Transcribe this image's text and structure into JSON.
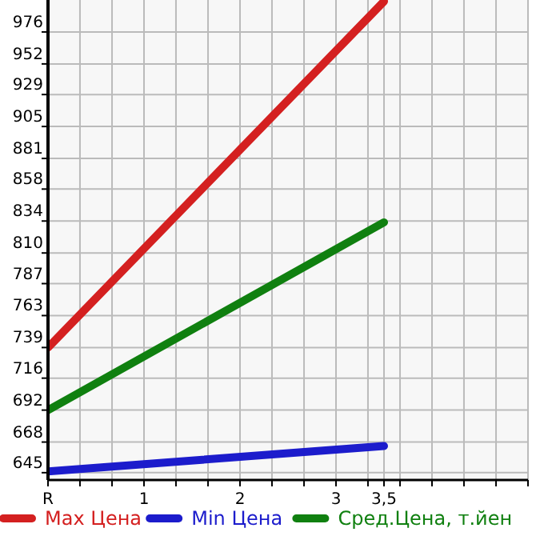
{
  "chart_data": {
    "type": "line",
    "x": [
      0,
      3.5
    ],
    "xlim": [
      0,
      5
    ],
    "xticks": [
      {
        "value": 0,
        "label": "R"
      },
      {
        "value": 0.333,
        "label": null
      },
      {
        "value": 0.667,
        "label": null
      },
      1,
      {
        "value": 1.333,
        "label": null
      },
      {
        "value": 1.667,
        "label": null
      },
      2,
      {
        "value": 2.333,
        "label": null
      },
      {
        "value": 2.667,
        "label": null
      },
      3,
      {
        "value": 3.333,
        "label": null
      },
      {
        "value": 3.5,
        "label": "3,5"
      },
      {
        "value": 3.667,
        "label": null
      },
      {
        "value": 4,
        "label": null
      },
      {
        "value": 4.333,
        "label": null
      },
      {
        "value": 4.667,
        "label": null
      },
      {
        "value": 5,
        "label": null
      }
    ],
    "ylim": [
      639.5,
      1000
    ],
    "yticks": [
      645,
      668,
      692,
      716,
      739,
      763,
      787,
      810,
      834,
      858,
      881,
      905,
      929,
      952,
      976
    ],
    "grid": true,
    "legend": "bottom",
    "line_style": "solid",
    "marker": "none",
    "series": [
      {
        "name": "Max Цена",
        "color": "#d42020",
        "values": [
          739,
          999
        ]
      },
      {
        "name": "Min Цена",
        "color": "#1c1ccc",
        "values": [
          646,
          665
        ]
      },
      {
        "name": "Сред.Цена, т.йен",
        "color": "#108010",
        "values": [
          692,
          833
        ]
      }
    ]
  }
}
